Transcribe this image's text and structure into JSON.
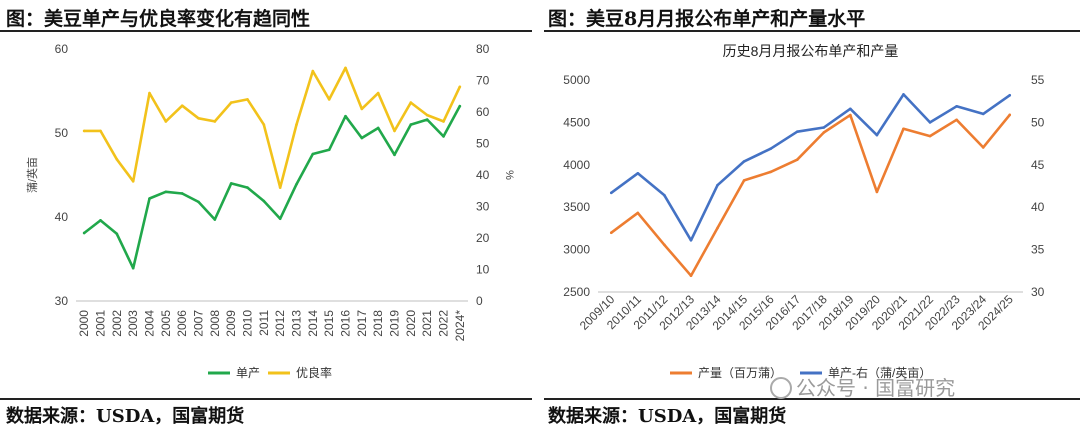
{
  "left_panel": {
    "title": "图：美豆单产与优良率变化有趋同性",
    "source": "数据来源：USDA，国富期货"
  },
  "right_panel": {
    "title": "图：美豆8月月报公布单产和产量水平",
    "source": "数据来源：USDA，国富期货"
  },
  "watermark": "公众号 · 国富研究",
  "chart_data": [
    {
      "type": "line",
      "title": "",
      "categories": [
        "2000",
        "2001",
        "2002",
        "2003",
        "2004",
        "2005",
        "2006",
        "2007",
        "2008",
        "2009",
        "2010",
        "2011",
        "2012",
        "2013",
        "2014",
        "2015",
        "2016",
        "2017",
        "2018",
        "2019",
        "2020",
        "2021",
        "2022",
        "2024*"
      ],
      "ylabel": "蒲/英亩",
      "y2label": "%",
      "ylim": [
        30,
        60
      ],
      "yticks": [
        30,
        40,
        50,
        60
      ],
      "y2lim": [
        0,
        80
      ],
      "y2ticks": [
        0,
        10,
        20,
        30,
        40,
        50,
        60,
        70,
        80
      ],
      "legend_position": "bottom",
      "series": [
        {
          "name": "单产",
          "axis": "left",
          "color": "#21a84b",
          "values": [
            38.1,
            39.6,
            38.0,
            33.9,
            42.2,
            43.0,
            42.8,
            41.8,
            39.7,
            44.0,
            43.5,
            41.9,
            39.8,
            43.9,
            47.5,
            48.0,
            52.0,
            49.4,
            50.6,
            47.4,
            51.0,
            51.6,
            49.6,
            53.2
          ]
        },
        {
          "name": "优良率",
          "axis": "right",
          "color": "#f2c21b",
          "values": [
            54,
            54,
            45,
            38,
            66,
            57,
            62,
            58,
            57,
            63,
            64,
            56,
            36,
            56,
            73,
            64,
            74,
            61,
            66,
            54,
            63,
            59,
            57,
            68
          ]
        }
      ]
    },
    {
      "type": "line",
      "title": "历史8月月报公布单产和产量",
      "categories": [
        "2009/10",
        "2010/11",
        "2011/12",
        "2012/13",
        "2013/14",
        "2014/15",
        "2015/16",
        "2016/17",
        "2017/18",
        "2018/19",
        "2019/20",
        "2020/21",
        "2021/22",
        "2022/23",
        "2023/24",
        "2024/25"
      ],
      "ylim": [
        2500,
        5000
      ],
      "yticks": [
        2500,
        3000,
        3500,
        4000,
        4500,
        5000
      ],
      "y2lim": [
        30,
        55
      ],
      "y2ticks": [
        30,
        35,
        40,
        45,
        50,
        55
      ],
      "legend_position": "bottom",
      "series": [
        {
          "name": "产量（百万蒲）",
          "axis": "left",
          "color": "#ed7d31",
          "values": [
            3199,
            3433,
            3056,
            2692,
            3255,
            3816,
            3916,
            4060,
            4381,
            4586,
            3680,
            4425,
            4339,
            4531,
            4205,
            4589
          ]
        },
        {
          "name": "单产-右（蒲/英亩）",
          "axis": "right",
          "color": "#4472c4",
          "values": [
            41.7,
            44.0,
            41.4,
            36.1,
            42.6,
            45.4,
            46.9,
            48.9,
            49.4,
            51.6,
            48.5,
            53.3,
            50.0,
            51.9,
            51.0,
            53.2
          ]
        }
      ]
    }
  ]
}
